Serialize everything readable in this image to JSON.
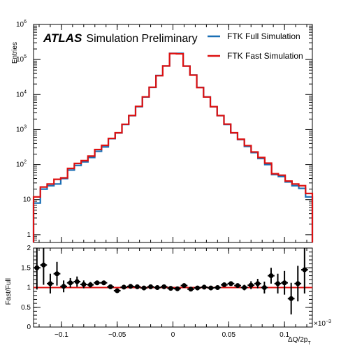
{
  "chart_data": [
    {
      "type": "line",
      "step": true,
      "ylabel": "Entries",
      "yscale": "log",
      "ylim": [
        0.6,
        1000000
      ],
      "xlim": [
        -0.000125,
        0.000125
      ],
      "ytick_labels": [
        {
          "v": 1,
          "label": "1"
        },
        {
          "v": 10,
          "label": "10"
        },
        {
          "v": 100,
          "base": "10",
          "exp": "2"
        },
        {
          "v": 1000,
          "base": "10",
          "exp": "3"
        },
        {
          "v": 10000,
          "base": "10",
          "exp": "4"
        },
        {
          "v": 100000,
          "base": "10",
          "exp": "5"
        },
        {
          "v": 1000000,
          "base": "10",
          "exp": "6"
        }
      ],
      "atlas_label": "ATLAS",
      "atlas_sub": "Simulation Preliminary",
      "series": [
        {
          "name": "FTK Full Simulation",
          "color": "#1a6fb5",
          "values": [
            8,
            20,
            25,
            28,
            40,
            70,
            95,
            120,
            160,
            240,
            320,
            550,
            800,
            1400,
            2500,
            4500,
            8500,
            16000,
            35000,
            65000,
            150000,
            150000,
            65000,
            36000,
            16000,
            8600,
            4500,
            2500,
            1400,
            800,
            520,
            330,
            220,
            150,
            100,
            52,
            46,
            32,
            25,
            21,
            12
          ]
        },
        {
          "name": "FTK Fast Simulation",
          "color": "#dd1111",
          "values": [
            12,
            23,
            28,
            38,
            42,
            78,
            108,
            130,
            175,
            270,
            355,
            560,
            810,
            1420,
            2530,
            4600,
            8600,
            16200,
            34500,
            65500,
            148000,
            145000,
            64800,
            35800,
            15800,
            8500,
            4520,
            2510,
            1430,
            810,
            530,
            350,
            230,
            160,
            110,
            55,
            50,
            34,
            28,
            25,
            15
          ]
        }
      ]
    },
    {
      "type": "scatter",
      "xlabel_main": "ΔQ/2p",
      "xlabel_sub": "T",
      "ylabel": "Fast/Full",
      "ylim": [
        0,
        2
      ],
      "xlim": [
        -0.000125,
        0.000125
      ],
      "x_multiplier": "×10",
      "x_multiplier_exp": "−3",
      "reference_line": 1,
      "reference_color": "#dd1111",
      "yticks": [
        0,
        0.5,
        1,
        1.5,
        2
      ],
      "ytick_labels": [
        "0",
        "0.5",
        "1",
        "1.5",
        "2"
      ],
      "xticks": [
        -0.0001,
        -5e-05,
        0,
        5e-05,
        0.0001
      ],
      "xtick_labels": [
        "−0.1",
        "−0.05",
        "0",
        "0.05",
        "0.1"
      ],
      "x": [
        -0.000122,
        -0.000116,
        -0.00011,
        -0.000104,
        -9.8e-05,
        -9.2e-05,
        -8.6e-05,
        -8e-05,
        -7.4e-05,
        -6.8e-05,
        -6.2e-05,
        -5.6e-05,
        -5e-05,
        -4.4e-05,
        -3.8e-05,
        -3.2e-05,
        -2.6e-05,
        -2e-05,
        -1.4e-05,
        -8e-06,
        -2e-06,
        4e-06,
        1e-05,
        1.6e-05,
        2.2e-05,
        2.8e-05,
        3.4e-05,
        4e-05,
        4.6e-05,
        5.2e-05,
        5.8e-05,
        6.4e-05,
        7e-05,
        7.6e-05,
        8.2e-05,
        8.8e-05,
        9.4e-05,
        0.0001,
        0.000106,
        0.000112,
        0.000118
      ],
      "y": [
        1.5,
        1.57,
        1.1,
        1.35,
        1.03,
        1.12,
        1.15,
        1.08,
        1.07,
        1.12,
        1.12,
        1.02,
        0.92,
        1.01,
        1.03,
        1.02,
        0.99,
        1.02,
        1.0,
        1.02,
        0.98,
        0.97,
        1.05,
        0.96,
        0.99,
        1.01,
        0.99,
        1.0,
        1.07,
        1.1,
        1.05,
        1.0,
        1.06,
        1.1,
        1.0,
        1.3,
        1.1,
        1.12,
        0.72,
        1.1,
        1.45
      ],
      "err": [
        0.55,
        0.5,
        0.25,
        0.3,
        0.15,
        0.12,
        0.13,
        0.1,
        0.07,
        0.05,
        0.03,
        0.02,
        0.015,
        0.01,
        0.01,
        0.01,
        0.01,
        0.01,
        0.01,
        0.01,
        0.01,
        0.01,
        0.01,
        0.01,
        0.01,
        0.01,
        0.01,
        0.01,
        0.03,
        0.05,
        0.05,
        0.07,
        0.1,
        0.12,
        0.15,
        0.2,
        0.25,
        0.3,
        0.4,
        0.45,
        0.6
      ]
    }
  ]
}
